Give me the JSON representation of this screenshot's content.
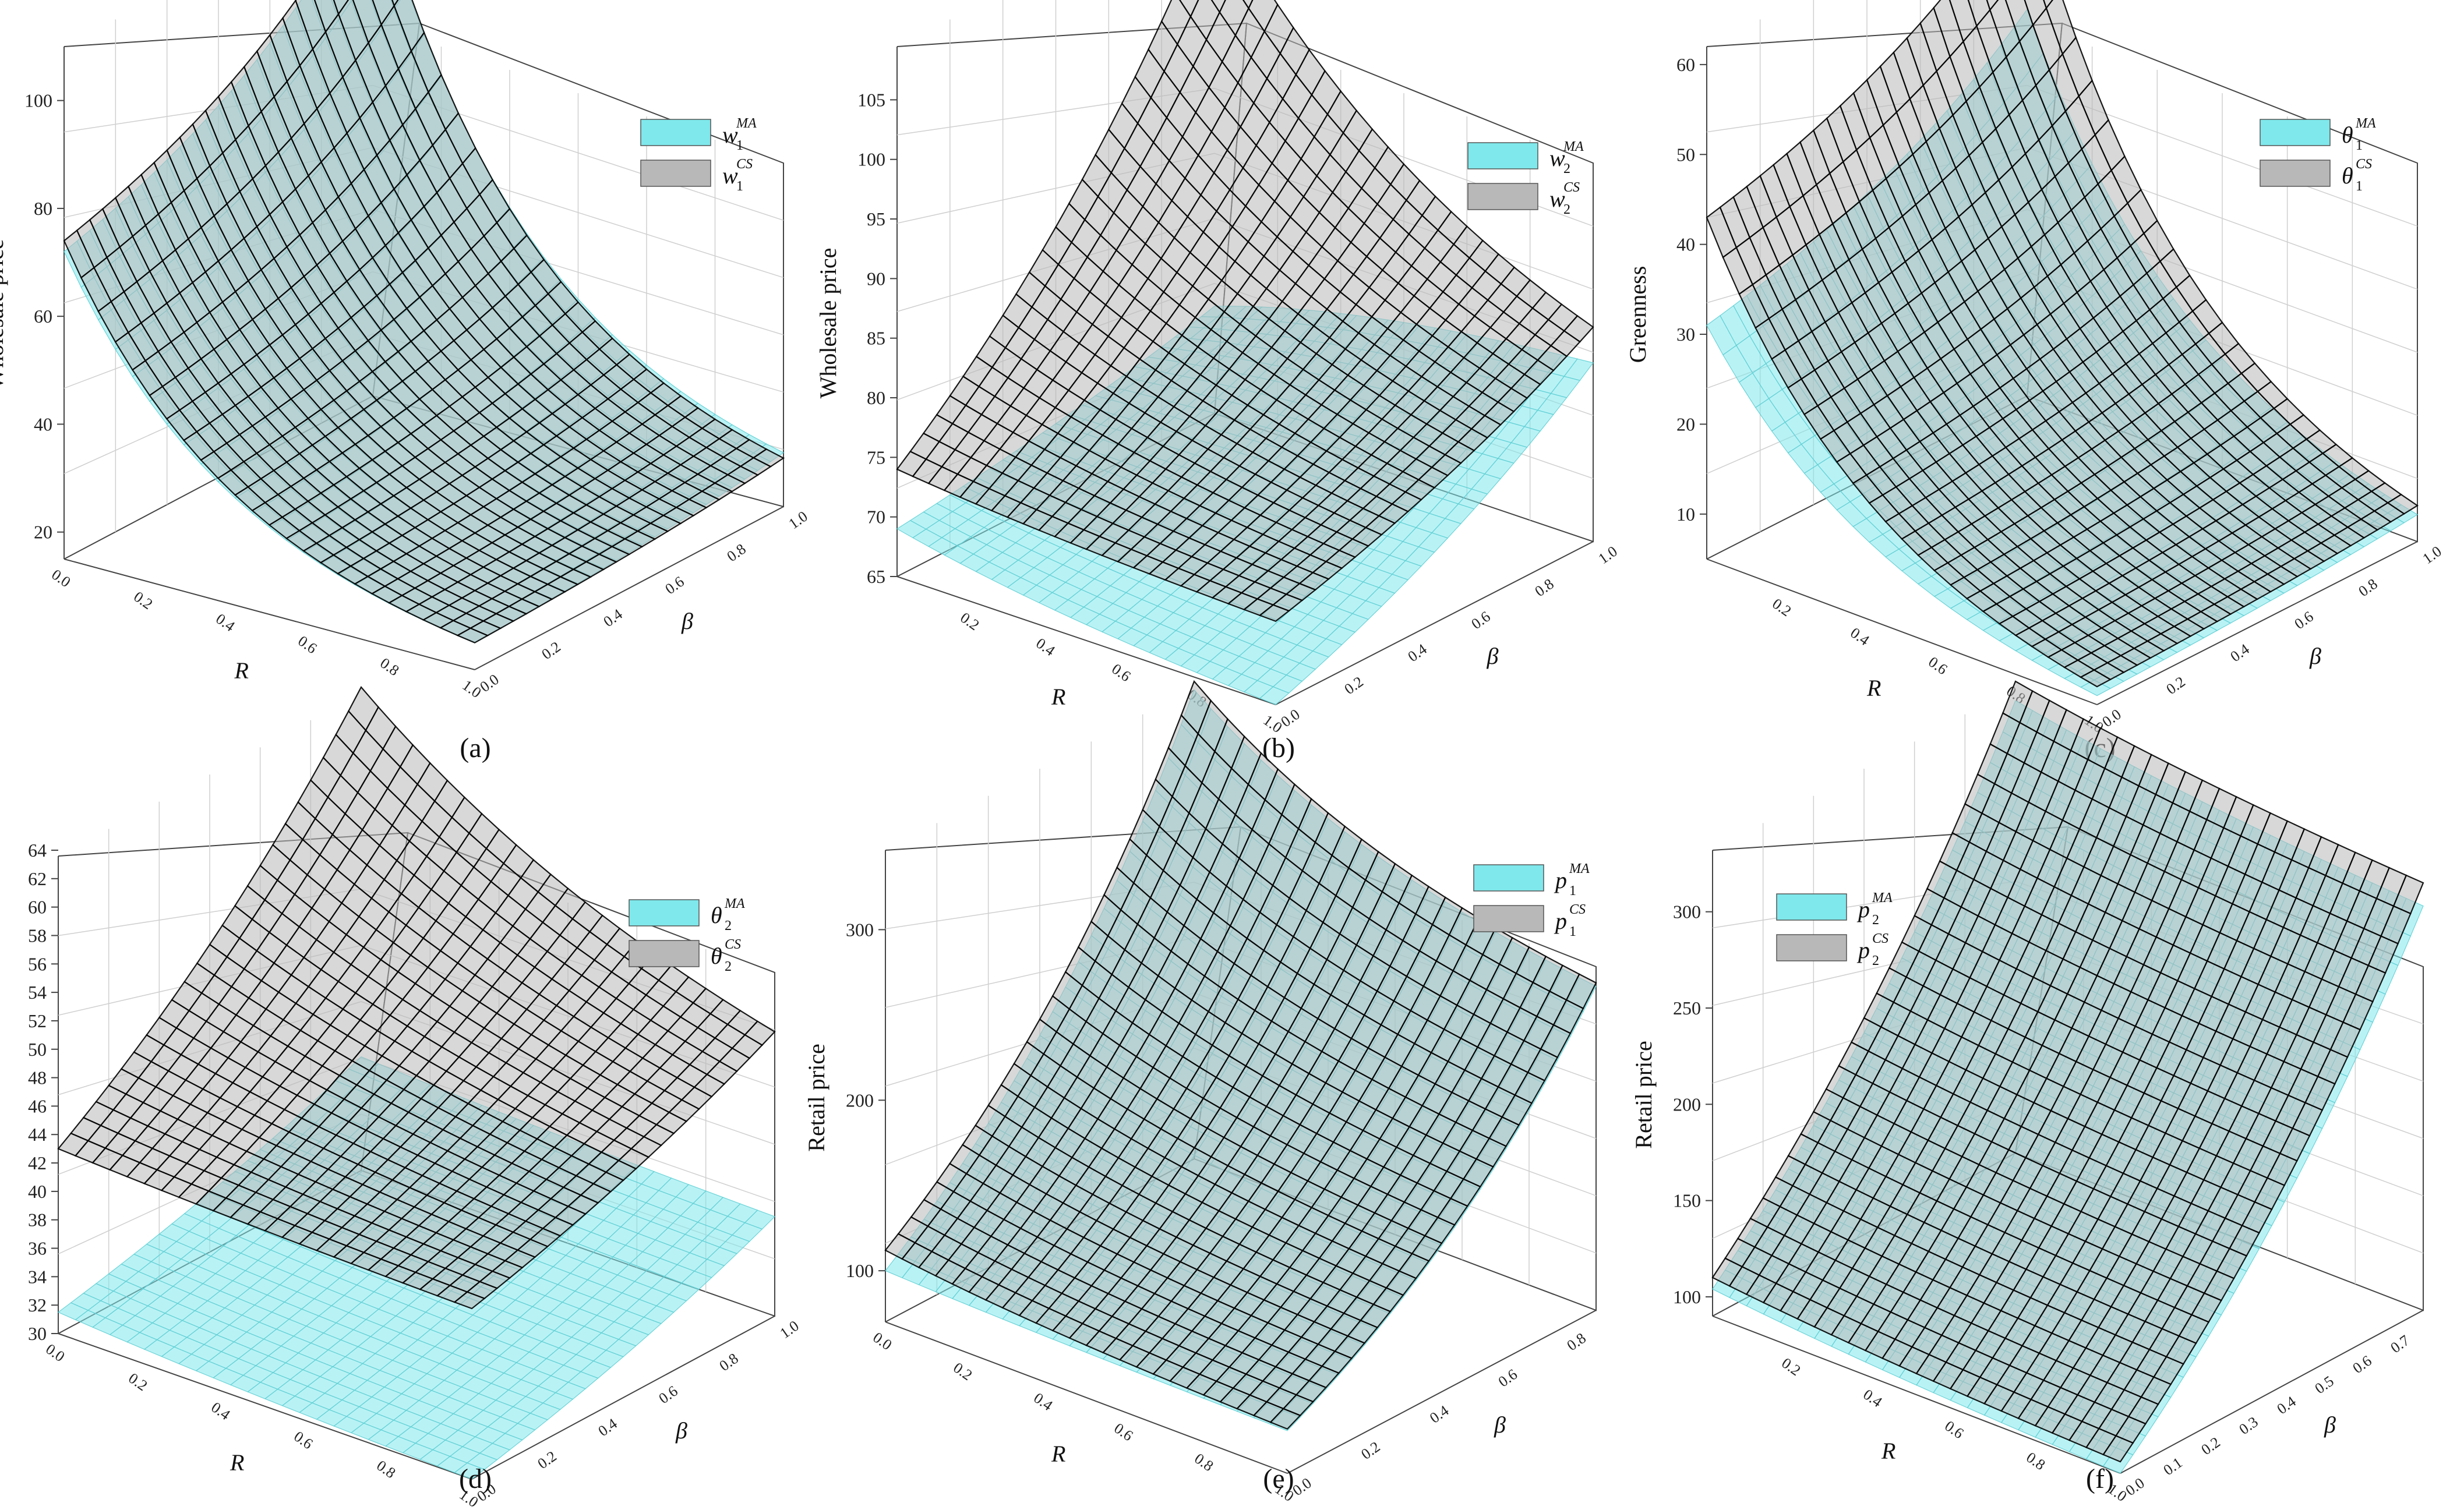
{
  "figure": {
    "colors": {
      "ma": "#7fe8ec",
      "cs": "#b8b8b8",
      "ma_edge": "#5fcfd4",
      "cs_edge": "#000000",
      "axis": "#444444",
      "grid": "#cfcfcf"
    },
    "panels": [
      {
        "label": "(a)",
        "zlabel": "Wholesale price",
        "xlabel": "R",
        "ylabel": "β",
        "xticks": [
          "0.0",
          "0.2",
          "0.4",
          "0.6",
          "0.8",
          "1.0"
        ],
        "yticks": [
          "0.0",
          "0.2",
          "0.4",
          "0.6",
          "0.8",
          "1.0"
        ],
        "zticks": [
          "20",
          "40",
          "60",
          "80",
          "100"
        ],
        "legend": [
          {
            "base": "w",
            "sub": "1",
            "sup": "MA"
          },
          {
            "base": "w",
            "sub": "1",
            "sup": "CS"
          }
        ]
      },
      {
        "label": "(b)",
        "zlabel": "Wholesale price",
        "xlabel": "R",
        "ylabel": "β",
        "xticks": [
          "0.2",
          "0.4",
          "0.6",
          "0.8",
          "1.0"
        ],
        "yticks": [
          "0.0",
          "0.2",
          "0.4",
          "0.6",
          "0.8",
          "1.0"
        ],
        "zticks": [
          "65",
          "70",
          "75",
          "80",
          "85",
          "90",
          "95",
          "100",
          "105"
        ],
        "legend": [
          {
            "base": "w",
            "sub": "2",
            "sup": "MA"
          },
          {
            "base": "w",
            "sub": "2",
            "sup": "CS"
          }
        ]
      },
      {
        "label": "(c)",
        "zlabel": "Greenness",
        "xlabel": "R",
        "ylabel": "β",
        "xticks": [
          "0.2",
          "0.4",
          "0.6",
          "0.8",
          "1.0"
        ],
        "yticks": [
          "0.0",
          "0.2",
          "0.4",
          "0.6",
          "0.8",
          "1.0"
        ],
        "zticks": [
          "10",
          "20",
          "30",
          "40",
          "50",
          "60"
        ],
        "legend": [
          {
            "base": "θ",
            "sub": "1",
            "sup": "MA"
          },
          {
            "base": "θ",
            "sub": "1",
            "sup": "CS"
          }
        ]
      },
      {
        "label": "(d)",
        "zlabel": "Greenness",
        "xlabel": "R",
        "ylabel": "β",
        "xticks": [
          "0.0",
          "0.2",
          "0.4",
          "0.6",
          "0.8",
          "1.0"
        ],
        "yticks": [
          "0.0",
          "0.2",
          "0.4",
          "0.6",
          "0.8",
          "1.0"
        ],
        "zticks": [
          "30",
          "32",
          "34",
          "36",
          "38",
          "40",
          "42",
          "44",
          "46",
          "48",
          "50",
          "52",
          "54",
          "56",
          "58",
          "60",
          "62",
          "64"
        ],
        "legend": [
          {
            "base": "θ",
            "sub": "2",
            "sup": "MA"
          },
          {
            "base": "θ",
            "sub": "2",
            "sup": "CS"
          }
        ]
      },
      {
        "label": "(e)",
        "zlabel": "Retail price",
        "xlabel": "R",
        "ylabel": "β",
        "xticks": [
          "0.0",
          "0.2",
          "0.4",
          "0.6",
          "0.8",
          "1.0"
        ],
        "yticks": [
          "0.0",
          "0.2",
          "0.4",
          "0.6",
          "0.8"
        ],
        "zticks": [
          "100",
          "200",
          "300"
        ],
        "legend": [
          {
            "base": "p",
            "sub": "1",
            "sup": "MA"
          },
          {
            "base": "p",
            "sub": "1",
            "sup": "CS"
          }
        ]
      },
      {
        "label": "(f)",
        "zlabel": "Retail price",
        "xlabel": "R",
        "ylabel": "β",
        "xticks": [
          "0.2",
          "0.4",
          "0.6",
          "0.8",
          "1.0"
        ],
        "yticks": [
          "0.0",
          "0.1",
          "0.2",
          "0.3",
          "0.4",
          "0.5",
          "0.6",
          "0.7"
        ],
        "zticks": [
          "100",
          "150",
          "200",
          "250",
          "300"
        ],
        "legend": [
          {
            "base": "p",
            "sub": "2",
            "sup": "MA"
          },
          {
            "base": "p",
            "sub": "2",
            "sup": "CS"
          }
        ]
      }
    ]
  },
  "chart_data": [
    {
      "type": "surface3d",
      "panel": "(a)",
      "title": "",
      "xlabel": "R",
      "ylabel": "β",
      "zlabel": "Wholesale price",
      "xlim": [
        0,
        1
      ],
      "ylim": [
        0,
        1
      ],
      "zlim": [
        15,
        110
      ],
      "series": [
        {
          "name": "w1 MA",
          "corners": {
            "R0_b0": 72,
            "R1_b0": 20,
            "R0_b1": 110,
            "R1_b1": 25
          }
        },
        {
          "name": "w1 CS",
          "corners": {
            "R0_b0": 74,
            "R1_b0": 20,
            "R0_b1": 111,
            "R1_b1": 24
          }
        }
      ]
    },
    {
      "type": "surface3d",
      "panel": "(b)",
      "title": "",
      "xlabel": "R",
      "ylabel": "β",
      "zlabel": "Wholesale price",
      "xlim": [
        0,
        1
      ],
      "ylim": [
        0,
        1
      ],
      "zlim": [
        65,
        108
      ],
      "series": [
        {
          "name": "w2 MA",
          "corners": {
            "R0_b0": 69,
            "R1_b0": 65,
            "R0_b1": 74,
            "R1_b1": 80
          }
        },
        {
          "name": "w2 CS",
          "corners": {
            "R0_b0": 74,
            "R1_b0": 72,
            "R0_b1": 108,
            "R1_b1": 83
          }
        }
      ]
    },
    {
      "type": "surface3d",
      "panel": "(c)",
      "title": "",
      "xlabel": "R",
      "ylabel": "β",
      "zlabel": "Greenness",
      "xlim": [
        0,
        1
      ],
      "ylim": [
        0,
        1
      ],
      "zlim": [
        5,
        62
      ],
      "series": [
        {
          "name": "θ1 MA",
          "corners": {
            "R0_b0": 31,
            "R1_b0": 6,
            "R0_b1": 48,
            "R1_b1": 8
          }
        },
        {
          "name": "θ1 CS",
          "corners": {
            "R0_b0": 43,
            "R1_b0": 7,
            "R0_b1": 62,
            "R1_b1": 9
          }
        }
      ]
    },
    {
      "type": "surface3d",
      "panel": "(d)",
      "title": "",
      "xlabel": "R",
      "ylabel": "β",
      "zlabel": "Greenness",
      "xlim": [
        0,
        1
      ],
      "ylim": [
        0,
        1
      ],
      "zlim": [
        30,
        64
      ],
      "series": [
        {
          "name": "θ2 MA",
          "corners": {
            "R0_b0": 31.5,
            "R1_b0": 30,
            "R0_b1": 38,
            "R1_b1": 37
          }
        },
        {
          "name": "θ2 CS",
          "corners": {
            "R0_b0": 43,
            "R1_b0": 42,
            "R0_b1": 64,
            "R1_b1": 50
          }
        }
      ]
    },
    {
      "type": "surface3d",
      "panel": "(e)",
      "title": "",
      "xlabel": "R",
      "ylabel": "β",
      "zlabel": "Retail price",
      "xlim": [
        0,
        1
      ],
      "ylim": [
        0,
        0.9
      ],
      "zlim": [
        70,
        350
      ],
      "series": [
        {
          "name": "p1 MA",
          "corners": {
            "R0_b0": 100,
            "R1_b0": 95,
            "R0_b1": 345,
            "R1_b1": 260
          }
        },
        {
          "name": "p1 CS",
          "corners": {
            "R0_b0": 112,
            "R1_b0": 96,
            "R0_b1": 350,
            "R1_b1": 262
          }
        }
      ]
    },
    {
      "type": "surface3d",
      "panel": "(f)",
      "title": "",
      "xlabel": "R",
      "ylabel": "β",
      "zlabel": "Retail price",
      "xlim": [
        0,
        1
      ],
      "ylim": [
        0,
        0.8
      ],
      "zlim": [
        90,
        335
      ],
      "series": [
        {
          "name": "p2 MA",
          "corners": {
            "R0_b0": 104,
            "R1_b0": 90,
            "R0_b1": 325,
            "R1_b1": 300
          }
        },
        {
          "name": "p2 CS",
          "corners": {
            "R0_b0": 110,
            "R1_b0": 96,
            "R0_b1": 335,
            "R1_b1": 312
          }
        }
      ]
    }
  ]
}
